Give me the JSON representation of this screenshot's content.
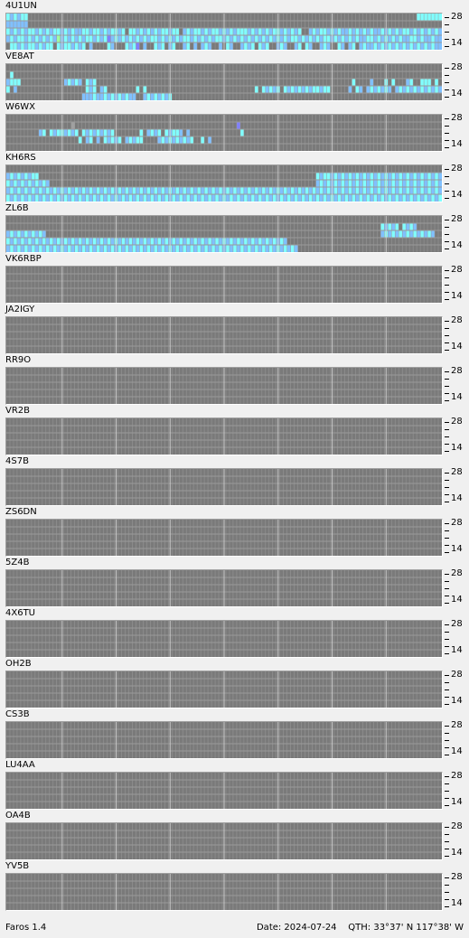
{
  "window": {
    "app_version": "Faros 1.4",
    "date_text": "Date: 2024-07-24",
    "qth_text": "QTH: 33°37' N   117°38' W"
  },
  "scale": {
    "top_label": "28",
    "bottom_label": "14"
  },
  "bands_mhz": [
    14,
    18,
    21,
    24,
    28
  ],
  "colors": {
    "grid_background": "#7a7a7a",
    "grid_lines": "#9a9a9a",
    "hour_lines": "#c8c8c8",
    "level_colors": [
      "#a0a0a0",
      "#8080ff",
      "#80c0ff",
      "#80ffff",
      "#a0ffa0"
    ]
  },
  "beacons": [
    {
      "callsign": "4U1UN",
      "signal": [
        "4343440000000000000000000000000000000000000000000000000000000000000000000000000000000000000000000000000000000000004444444",
        "3333330000000000000000000000000000000000000000000000000000000000000000000000000000000000000000000000000000000000000000000",
        "4343434434343443434334434434344340443434343443440343443434434343444343434344343434003434434343343434343343434344343434343",
        "3434434343434353434343443434234343434343443434343443434343443434343434343434343443434343443434343433443434343433443433433",
        "0443434434344043443434030000430004342030043403400340303430030430034340434003430034043003430043034034334343434343434343433"
      ]
    },
    {
      "callsign": "VE8AT",
      "signal": [
        "0000000000000000000000000000000000000000000000000000000000000000000000000000000000000000000000000000000000000000000000000",
        "0400000000000000000000000000000000000000000000000000000000000000000000000000000000000000000000000000000000000000000000000",
        "3444000000000000343430434000000000000000000000000000000000000000000000000000000000000000000000004000030004040003400444040",
        "4030000000000000000000434034000000004040000000000000000000000000000004043434043434343443440000030430343434303434343434343",
        "0000000000000000000003334334343434330034343434000000000000000000000000000000000000000000000000000000000000000000000000000"
      ]
    },
    {
      "callsign": "W6WX",
      "signal": [
        "0000000000000000000000000000000000000000000000000000000000000000000000000000000000000000000000000000000000000000000000000",
        "0000000000000000001000000000000000000000000000000000000000000000200000000000000000000000000000000000000000000000000000000",
        "0000000003404344343404343434340000000403434043443030000000000000040000000000000000000000000000000000000000000000000000000",
        "0000000000000000000040340304343403434400003434343434004030000000000000000000000000000000000000000000000000000000000000000",
        "0000000000000000000000000000000000000000000000000000000000000000000000000000000000000000000000000000000000000000000000000"
      ]
    },
    {
      "callsign": "KH6RS",
      "signal": [
        "0000000000000000000000000000000000000000000000000000000000000000000000000000000000000000000000000000000000000000000000000",
        "3434343440000000000000000000000000000000000000000000000000000000000000000000000000000043443434343434343434343434343434343",
        "4343434343430000000000000000000000000000000000000000000000000000000000000000000000000034343434343434343434343434343434343",
        "3434343434343434343434343434343434343434343434343434343434343434343434343434343434343434343434343434343434343434343434343",
        "4343434343434343434343434343434343434343434343434343434343434343434343434343434343434343434343434343434343434343434343434"
      ]
    },
    {
      "callsign": "ZL6B",
      "signal": [
        "0000000000000000000000000000000000000000000000000000000000000000000000000000000000000000000000000000000000000000000000000",
        "0000000000000000000000000000000000000000000000000000000000000000000000000000000000000000000000000000000043434043430000000",
        "3434343434300000000000000000000000000000000000000000000000000000000000000000000000000000000000000000000034343434343434300",
        "4343434343434343434343434343434343434343434343434343434343434343434343434343430000000000000000000000000000000000000000000",
        "3434343434343434343434343434343434343434343434343434343434343434343434343434343430000000000000000000000000000000000000000"
      ]
    },
    {
      "callsign": "VK6RBP",
      "signal": [
        "0000000000000000000000000000000000000000000000000000000000000000000000000000000000000000000000000000000000000000000000000",
        "0000000000000000000000000000000000000000000000000000000000000000000000000000000000000000000000000000000000000000000000000",
        "0000000000000000000000000000000000000000000000000000000000000000000000000000000000000000000000000000000000000000000000000",
        "0000000000000000000000000000000000000000000000000000000000000000000000000000000000000000000000000000000000000000000000000",
        "0000000000000000000000000000000000000000000000000000000000000000000000000000000000000000000000000000000000000000000000000"
      ]
    },
    {
      "callsign": "JA2IGY",
      "signal": [
        "0000000000000000000000000000000000000000000000000000000000000000000000000000000000000000000000000000000000000000000000000",
        "0000000000000000000000000000000000000000000000000000000000000000000000000000000000000000000000000000000000000000000000000",
        "0000000000000000000000000000000000000000000000000000000000000000000000000000000000000000000000000000000000000000000000000",
        "0000000000000000000000000000000000000000000000000000000000000000000000000000000000000000000000000000000000000000000000000",
        "0000000000000000000000000000000000000000000000000000000000000000000000000000000000000000000000000000000000000000000000000"
      ]
    },
    {
      "callsign": "RR9O",
      "signal": [
        "0000000000000000000000000000000000000000000000000000000000000000000000000000000000000000000000000000000000000000000000000",
        "0000000000000000000000000000000000000000000000000000000000000000000000000000000000000000000000000000000000000000000000000",
        "0000000000000000000000000000000000000000000000000000000000000000000000000000000000000000000000000000000000000000000000000",
        "0000000000000000000000000000000000000000000000000000000000000000000000000000000000000000000000000000000000000000000000000",
        "0000000000000000000000000000000000000000000000000000000000000000000000000000000000000000000000000000000000000000000000000"
      ]
    },
    {
      "callsign": "VR2B",
      "signal": [
        "0000000000000000000000000000000000000000000000000000000000000000000000000000000000000000000000000000000000000000000000000",
        "0000000000000000000000000000000000000000000000000000000000000000000000000000000000000000000000000000000000000000000000000",
        "0000000000000000000000000000000000000000000000000000000000000000000000000000000000000000000000000000000000000000000000000",
        "0000000000000000000000000000000000000000000000000000000000000000000000000000000000000000000000000000000000000000000000000",
        "0000000000000000000000000000000000000000000000000000000000000000000000000000000000000000000000000000000000000000000000000"
      ]
    },
    {
      "callsign": "4S7B",
      "signal": [
        "0000000000000000000000000000000000000000000000000000000000000000000000000000000000000000000000000000000000000000000000000",
        "0000000000000000000000000000000000000000000000000000000000000000000000000000000000000000000000000000000000000000000000000",
        "0000000000000000000000000000000000000000000000000000000000000000000000000000000000000000000000000000000000000000000000000",
        "0000000000000000000000000000000000000000000000000000000000000000000000000000000000000000000000000000000000000000000000000",
        "0000000000000000000000000000000000000000000000000000000000000000000000000000000000000000000000000000000000000000000000000"
      ]
    },
    {
      "callsign": "ZS6DN",
      "signal": [
        "0000000000000000000000000000000000000000000000000000000000000000000000000000000000000000000000000000000000000000000000000",
        "0000000000000000000000000000000000000000000000000000000000000000000000000000000000000000000000000000000000000000000000000",
        "0000000000000000000000000000000000000000000000000000000000000000000000000000000000000000000000000000000000000000000000000",
        "0000000000000000000000000000000000000000000000000000000000000000000000000000000000000000000000000000000000000000000000000",
        "0000000000000000000000000000000000000000000000000000000000000000000000000000000000000000000000000000000000000000000000000"
      ]
    },
    {
      "callsign": "5Z4B",
      "signal": [
        "0000000000000000000000000000000000000000000000000000000000000000000000000000000000000000000000000000000000000000000000000",
        "0000000000000000000000000000000000000000000000000000000000000000000000000000000000000000000000000000000000000000000000000",
        "0000000000000000000000000000000000000000000000000000000000000000000000000000000000000000000000000000000000000000000000000",
        "0000000000000000000000000000000000000000000000000000000000000000000000000000000000000000000000000000000000000000000000000",
        "0000000000000000000000000000000000000000000000000000000000000000000000000000000000000000000000000000000000000000000000000"
      ]
    },
    {
      "callsign": "4X6TU",
      "signal": [
        "0000000000000000000000000000000000000000000000000000000000000000000000000000000000000000000000000000000000000000000000000",
        "0000000000000000000000000000000000000000000000000000000000000000000000000000000000000000000000000000000000000000000000000",
        "0000000000000000000000000000000000000000000000000000000000000000000000000000000000000000000000000000000000000000000000000",
        "0000000000000000000000000000000000000000000000000000000000000000000000000000000000000000000000000000000000000000000000000",
        "0000000000000000000000000000000000000000000000000000000000000000000000000000000000000000000000000000000000000000000000000"
      ]
    },
    {
      "callsign": "OH2B",
      "signal": [
        "0000000000000000000000000000000000000000000000000000000000000000000000000000000000000000000000000000000000000000000000000",
        "0000000000000000000000000000000000000000000000000000000000000000000000000000000000000000000000000000000000000000000000000",
        "0000000000000000000000000000000000000000000000000000000000000000000000000000000000000000000000000000000000000000000000000",
        "0000000000000000000000000000000000000000000000000000000000000000000000000000000000000000000000000000000000000000000000000",
        "0000000000000000000000000000000000000000000000000000000000000000000000000000000000000000000000000000000000000000000000000"
      ]
    },
    {
      "callsign": "CS3B",
      "signal": [
        "0000000000000000000000000000000000000000000000000000000000000000000000000000000000000000000000000000000000000000000000000",
        "0000000000000000000000000000000000000000000000000000000000000000000000000000000000000000000000000000000000000000000000000",
        "0000000000000000000000000000000000000000000000000000000000000000000000000000000000000000000000000000000000000000000000000",
        "0000000000000000000000000000000000000000000000000000000000000000000000000000000000000000000000000000000000000000000000000",
        "0000000000000000000000000000000000000000000000000000000000000000000000000000000000000000000000000000000000000000000000000"
      ]
    },
    {
      "callsign": "LU4AA",
      "signal": [
        "0000000000000000000000000000000000000000000000000000000000000000000000000000000000000000000000000000000000000000000000000",
        "0000000000000000000000000000000000000000000000000000000000000000000000000000000000000000000000000000000000000000000000000",
        "0000000000000000000000000000000000000000000000000000000000000000000000000000000000000000000000000000000000000000000000000",
        "0000000000000000000000000000000000000000000000000000000000000000000000000000000000000000000000000000000000000000000000000",
        "0000000000000000000000000000000000000000000000000000000000000000000000000000000000000000000000000000000000000000000000000"
      ]
    },
    {
      "callsign": "OA4B",
      "signal": [
        "0000000000000000000000000000000000000000000000000000000000000000000000000000000000000000000000000000000000000000000000000",
        "0000000000000000000000000000000000000000000000000000000000000000000000000000000000000000000000000000000000000000000000000",
        "0000000000000000000000000000000000000000000000000000000000000000000000000000000000000000000000000000000000000000000000000",
        "0000000000000000000000000000000000000000000000000000000000000000000000000000000000000000000000000000000000000000000000000",
        "0000000000000000000000000000000000000000000000000000000000000000000000000000000000000000000000000000000000000000000000000"
      ]
    },
    {
      "callsign": "YV5B",
      "signal": [
        "0000000000000000000000000000000000000000000000000000000000000000000000000000000000000000000000000000000000000000000000000",
        "0000000000000000000000000000000000000000000000000000000000000000000000000000000000000000000000000000000000000000000000000",
        "0000000000000000000000000000000000000000000000000000000000000000000000000000000000000000000000000000000000000000000000000",
        "0000000000000000000000000000000000000000000000000000000000000000000000000000000000000000000000000000000000000000000000000",
        "0000000000000000000000000000000000000000000000000000000000000000000000000000000000000000000000000000000000000000000000000"
      ]
    }
  ]
}
